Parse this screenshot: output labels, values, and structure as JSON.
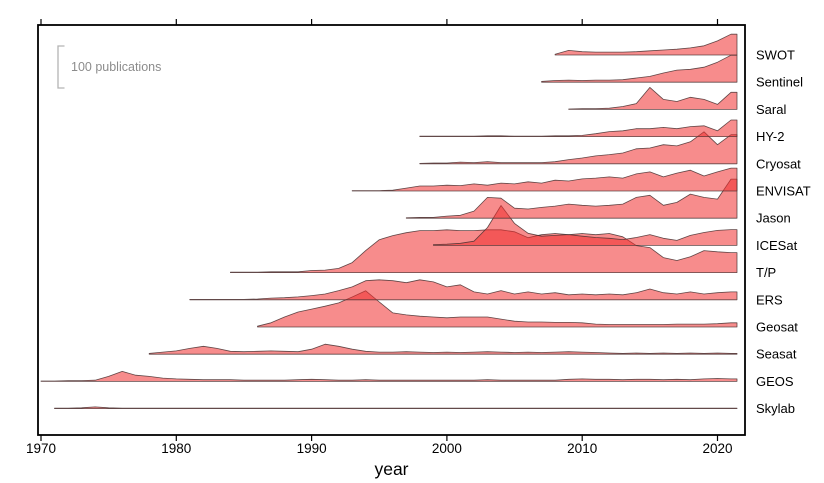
{
  "figure": {
    "xlabel": "year",
    "scale_annotation": "100 publications"
  },
  "chart_data": {
    "type": "area",
    "subtype": "ridgeline",
    "title": "",
    "xlabel": "year",
    "ylabel": "",
    "xlim": [
      1969.7,
      2022.4
    ],
    "x_ticks": [
      1970,
      1980,
      1990,
      2000,
      2010,
      2020
    ],
    "grid": false,
    "legend_position": "none",
    "scale_reference": {
      "label": "100 publications",
      "publications": 100
    },
    "fill_color": "rgba(240,45,45,0.55)",
    "line_color": "rgba(70,48,48,0.85)",
    "frame_color": "#000000",
    "scale_bracket_color": "#b3b3b3",
    "scale_text_color": "#8c8c8c",
    "row_order_note": "top to bottom",
    "series": [
      {
        "name": "SWOT",
        "start_year": 2008,
        "values": [
          2,
          11,
          8,
          7,
          7,
          7,
          8,
          10,
          12,
          14,
          17,
          22,
          34,
          50
        ]
      },
      {
        "name": "Sentinel",
        "start_year": 2007,
        "values": [
          2,
          4,
          5,
          4,
          5,
          5,
          6,
          10,
          14,
          22,
          29,
          31,
          36,
          48,
          65
        ]
      },
      {
        "name": "Saral",
        "start_year": 2009,
        "values": [
          1,
          2,
          2,
          3,
          7,
          14,
          53,
          24,
          19,
          29,
          24,
          12,
          41
        ]
      },
      {
        "name": "HY-2",
        "start_year": 1998,
        "values": [
          1,
          1,
          1,
          1,
          1,
          2,
          2,
          1,
          1,
          1,
          2,
          2,
          3,
          7,
          12,
          14,
          19,
          19,
          22,
          19,
          24,
          26,
          14,
          40
        ]
      },
      {
        "name": "Cryosat",
        "start_year": 1998,
        "values": [
          1,
          2,
          2,
          4,
          3,
          5,
          3,
          3,
          3,
          3,
          5,
          10,
          14,
          19,
          22,
          26,
          36,
          38,
          46,
          43,
          53,
          77,
          46,
          70
        ]
      },
      {
        "name": "ENVISAT",
        "start_year": 1993,
        "values": [
          1,
          1,
          1,
          2,
          7,
          12,
          12,
          14,
          13,
          17,
          14,
          19,
          17,
          22,
          19,
          26,
          24,
          29,
          31,
          34,
          31,
          41,
          46,
          34,
          43,
          50,
          36,
          46,
          55
        ]
      },
      {
        "name": "Jason",
        "start_year": 1997,
        "values": [
          1,
          2,
          2,
          5,
          7,
          17,
          50,
          48,
          24,
          22,
          26,
          29,
          34,
          31,
          29,
          31,
          34,
          50,
          55,
          31,
          38,
          58,
          50,
          46,
          94
        ]
      },
      {
        "name": "ICESat",
        "start_year": 1999,
        "values": [
          2,
          3,
          5,
          10,
          43,
          96,
          53,
          29,
          22,
          24,
          26,
          22,
          19,
          17,
          14,
          19,
          26,
          17,
          12,
          24,
          31,
          36,
          38
        ]
      },
      {
        "name": "T/P",
        "start_year": 1984,
        "values": [
          1,
          1,
          1,
          2,
          2,
          2,
          5,
          6,
          10,
          24,
          53,
          79,
          89,
          96,
          101,
          101,
          103,
          101,
          101,
          103,
          103,
          98,
          84,
          91,
          94,
          91,
          94,
          91,
          94,
          86,
          65,
          60,
          36,
          29,
          38,
          53,
          50,
          48
        ]
      },
      {
        "name": "ERS",
        "start_year": 1981,
        "values": [
          1,
          1,
          1,
          1,
          1,
          2,
          4,
          5,
          7,
          10,
          14,
          22,
          31,
          46,
          48,
          46,
          41,
          48,
          43,
          31,
          36,
          19,
          14,
          22,
          14,
          19,
          14,
          17,
          12,
          14,
          12,
          14,
          12,
          17,
          26,
          17,
          14,
          19,
          14,
          17,
          19
        ]
      },
      {
        "name": "Geosat",
        "start_year": 1986,
        "values": [
          2,
          10,
          24,
          36,
          43,
          50,
          58,
          72,
          87,
          60,
          34,
          29,
          26,
          24,
          22,
          24,
          24,
          24,
          19,
          14,
          12,
          12,
          11,
          11,
          10,
          7,
          6,
          6,
          6,
          6,
          6,
          7,
          7,
          7,
          8,
          10
        ]
      },
      {
        "name": "Seasat",
        "start_year": 1978,
        "values": [
          2,
          5,
          8,
          14,
          19,
          14,
          7,
          6,
          7,
          8,
          7,
          6,
          12,
          24,
          19,
          12,
          7,
          5,
          5,
          6,
          5,
          4,
          5,
          4,
          5,
          6,
          5,
          4,
          5,
          4,
          5,
          6,
          5,
          4,
          3,
          2,
          3,
          2,
          3,
          2,
          3,
          2,
          3,
          2
        ]
      },
      {
        "name": "GEOS",
        "start_year": 1970,
        "values": [
          1,
          1,
          2,
          2,
          3,
          12,
          24,
          15,
          12,
          8,
          6,
          5,
          4,
          4,
          4,
          3,
          3,
          3,
          3,
          4,
          5,
          4,
          3,
          3,
          4,
          3,
          3,
          3,
          3,
          3,
          3,
          3,
          3,
          4,
          3,
          3,
          3,
          3,
          3,
          5,
          6,
          5,
          5,
          4,
          5,
          5,
          4,
          5,
          4,
          6,
          7,
          6
        ]
      },
      {
        "name": "Skylab",
        "start_year": 1971,
        "values": [
          1,
          1,
          2,
          4,
          2,
          1,
          1,
          1,
          1,
          1,
          1,
          1,
          1,
          1,
          1,
          1,
          1,
          1,
          1,
          1,
          1,
          1,
          1,
          1,
          1,
          1,
          1,
          1,
          1,
          1,
          1,
          1,
          1,
          1,
          1,
          1,
          1,
          1,
          1,
          1,
          1,
          1,
          1,
          1,
          1,
          1,
          1,
          1,
          1,
          1,
          1
        ]
      }
    ]
  }
}
